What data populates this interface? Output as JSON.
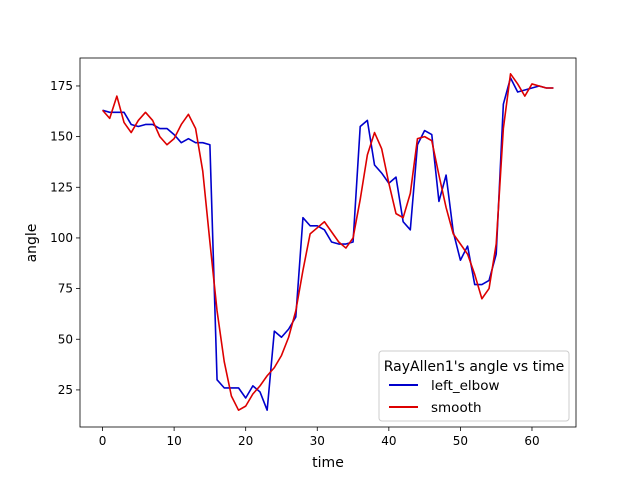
{
  "chart_data": {
    "type": "line",
    "title": "",
    "xlabel": "time",
    "ylabel": "angle",
    "xlim": [
      -3.15,
      66.15
    ],
    "ylim": [
      6.7,
      188.8
    ],
    "xticks": [
      0,
      10,
      20,
      30,
      40,
      50,
      60
    ],
    "yticks": [
      25,
      50,
      75,
      100,
      125,
      150,
      175
    ],
    "grid": false,
    "legend": {
      "title": "RayAllen1's angle vs time",
      "position": "lower-right"
    },
    "x": [
      0,
      1,
      2,
      3,
      4,
      5,
      6,
      7,
      8,
      9,
      10,
      11,
      12,
      13,
      14,
      15,
      16,
      17,
      18,
      19,
      20,
      21,
      22,
      23,
      24,
      25,
      26,
      27,
      28,
      29,
      30,
      31,
      32,
      33,
      34,
      35,
      36,
      37,
      38,
      39,
      40,
      41,
      42,
      43,
      44,
      45,
      46,
      47,
      48,
      49,
      50,
      51,
      52,
      53,
      54,
      55,
      56,
      57,
      58,
      59,
      60,
      61,
      62,
      63
    ],
    "series": [
      {
        "name": "left_elbow",
        "color": "#0000cc",
        "values": [
          163,
          162,
          162,
          162,
          156,
          155,
          156,
          156,
          154,
          154,
          151,
          147,
          149,
          147,
          147,
          146,
          30,
          26,
          26,
          26,
          21,
          27,
          24,
          15,
          54,
          51,
          55,
          61,
          110,
          106,
          106,
          104,
          98,
          97,
          97,
          98,
          155,
          158,
          136,
          132,
          127,
          130,
          108,
          104,
          146,
          153,
          151,
          118,
          131,
          103,
          89,
          96,
          77,
          77,
          79,
          92,
          166,
          179,
          172,
          173,
          174,
          175,
          174,
          174
        ],
        "_": 0
      },
      {
        "name": "smooth",
        "color": "#dd0000",
        "values": [
          163,
          159,
          170,
          157,
          152,
          158,
          162,
          158,
          150,
          146,
          149,
          156,
          161,
          154,
          133,
          98,
          64,
          39,
          22,
          15,
          17,
          23,
          27,
          32,
          36,
          42,
          51,
          64,
          84,
          102,
          105,
          108,
          103,
          98,
          95,
          100,
          119,
          141,
          152,
          144,
          127,
          112,
          110,
          122,
          149,
          150,
          148,
          131,
          115,
          102,
          97,
          92,
          82,
          70,
          75,
          97,
          154,
          181,
          176,
          170,
          176,
          175,
          174,
          174
        ],
        "_": 0
      }
    ]
  }
}
